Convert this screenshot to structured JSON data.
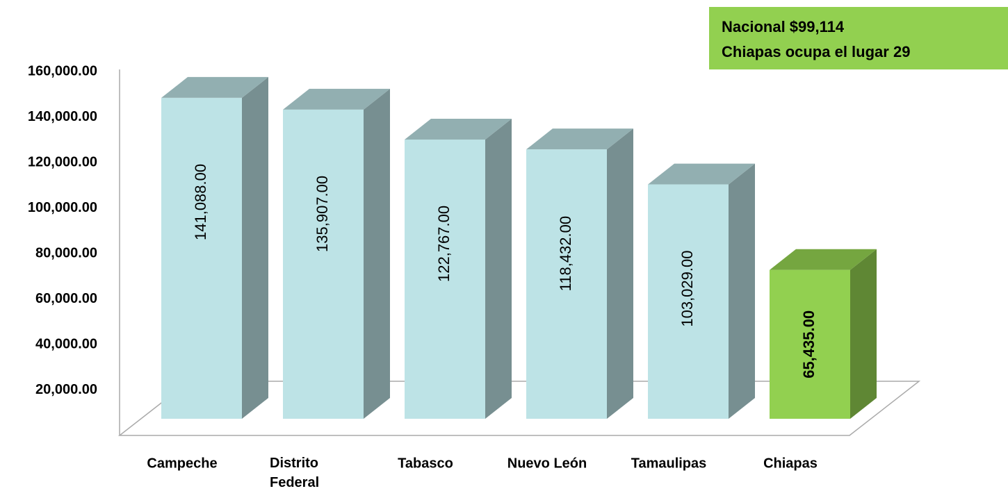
{
  "chart_data": {
    "type": "bar3d",
    "annotation": [
      "Nacional $99,114",
      "Chiapas ocupa el lugar 29"
    ],
    "annotation_color": "#92d050",
    "categories": [
      "Campeche",
      "Distrito Federal",
      "Tabasco",
      "Nuevo León",
      "Tamaulipas",
      "Chiapas"
    ],
    "values": [
      141088,
      135907,
      122767,
      118432,
      103029,
      65435
    ],
    "value_labels": [
      "141,088.00",
      "135,907.00",
      "122,767.00",
      "118,432.00",
      "103,029.00",
      "65,435.00"
    ],
    "color": "#bde3e6",
    "colors": [
      "#bde3e6",
      "#bde3e6",
      "#bde3e6",
      "#bde3e6",
      "#bde3e6",
      "#92d050"
    ],
    "ylim": [
      0,
      160000
    ],
    "yticks": [
      {
        "value": 20000,
        "label": "20,000.00"
      },
      {
        "value": 40000,
        "label": "40,000.00"
      },
      {
        "value": 60000,
        "label": "60,000.00"
      },
      {
        "value": 80000,
        "label": "80,000.00"
      },
      {
        "value": 100000,
        "label": "100,000.00"
      },
      {
        "value": 120000,
        "label": "120,000.00"
      },
      {
        "value": 140000,
        "label": "140,000.00"
      },
      {
        "value": 160000,
        "label": "160,000.00"
      }
    ]
  }
}
